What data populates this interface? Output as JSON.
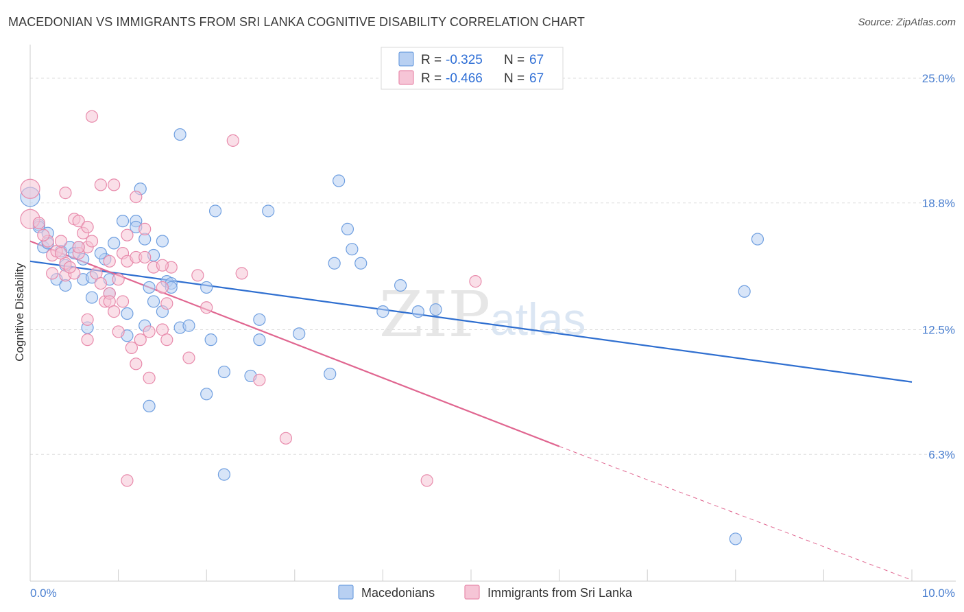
{
  "title": "MACEDONIAN VS IMMIGRANTS FROM SRI LANKA COGNITIVE DISABILITY CORRELATION CHART",
  "source": "Source: ZipAtlas.com",
  "watermark": {
    "zip": "ZIP",
    "atlas": "atlas"
  },
  "colors": {
    "blue": "#6f9fe0",
    "blue_fill": "#b8d0f2",
    "blue_line": "#2f6fd0",
    "pink": "#e88aab",
    "pink_fill": "#f6c5d6",
    "pink_line": "#e06690",
    "axis_label": "#4a7fd0",
    "grid": "#dddddd"
  },
  "legend": {
    "rows": [
      {
        "r_label": "R =",
        "r_value": "-0.325",
        "n_label": "N =",
        "n_value": "67",
        "series": "blue"
      },
      {
        "r_label": "R =",
        "r_value": "-0.466",
        "n_label": "N =",
        "n_value": "67",
        "series": "pink"
      }
    ]
  },
  "bottom_legend": [
    "Macedonians",
    "Immigrants from Sri Lanka"
  ],
  "chart_data": {
    "type": "scatter",
    "title": "MACEDONIAN VS IMMIGRANTS FROM SRI LANKA COGNITIVE DISABILITY CORRELATION CHART",
    "xlabel": "",
    "ylabel": "Cognitive Disability",
    "xlim": [
      0,
      10
    ],
    "ylim": [
      0,
      26.5
    ],
    "x_tick_labels": [
      "0.0%",
      "10.0%"
    ],
    "y_ticks": [
      6.3,
      12.5,
      18.8,
      25.0
    ],
    "y_tick_labels": [
      "6.3%",
      "12.5%",
      "18.8%",
      "25.0%"
    ],
    "grid": "horizontal dashed",
    "legend_position": "top-center",
    "series": [
      {
        "name": "Macedonians",
        "color": "blue",
        "trend": {
          "x": [
            0.0,
            10.0
          ],
          "y": [
            15.9,
            9.9
          ]
        },
        "points": [
          [
            0.0,
            19.1
          ],
          [
            0.1,
            17.7
          ],
          [
            0.2,
            17.3
          ],
          [
            0.15,
            16.6
          ],
          [
            0.35,
            16.4
          ],
          [
            0.45,
            16.6
          ],
          [
            0.55,
            16.6
          ],
          [
            0.6,
            16.0
          ],
          [
            0.4,
            15.7
          ],
          [
            0.3,
            15.0
          ],
          [
            0.4,
            14.7
          ],
          [
            0.6,
            15.0
          ],
          [
            0.85,
            16.0
          ],
          [
            0.95,
            16.8
          ],
          [
            0.9,
            15.0
          ],
          [
            0.7,
            14.1
          ],
          [
            0.9,
            14.3
          ],
          [
            1.05,
            17.9
          ],
          [
            1.2,
            17.9
          ],
          [
            1.3,
            17.0
          ],
          [
            1.2,
            17.6
          ],
          [
            1.25,
            19.5
          ],
          [
            1.4,
            16.2
          ],
          [
            1.5,
            16.9
          ],
          [
            1.35,
            14.6
          ],
          [
            1.55,
            14.9
          ],
          [
            1.6,
            14.8
          ],
          [
            1.4,
            13.9
          ],
          [
            1.5,
            13.4
          ],
          [
            1.1,
            13.3
          ],
          [
            1.3,
            12.7
          ],
          [
            1.1,
            12.2
          ],
          [
            0.65,
            12.6
          ],
          [
            1.7,
            12.6
          ],
          [
            1.8,
            12.7
          ],
          [
            1.7,
            22.2
          ],
          [
            2.1,
            18.4
          ],
          [
            2.7,
            18.4
          ],
          [
            2.0,
            14.6
          ],
          [
            2.05,
            12.0
          ],
          [
            2.2,
            10.4
          ],
          [
            2.0,
            9.3
          ],
          [
            2.5,
            10.2
          ],
          [
            2.6,
            13.0
          ],
          [
            2.6,
            12.0
          ],
          [
            3.05,
            12.3
          ],
          [
            3.4,
            10.3
          ],
          [
            3.45,
            15.8
          ],
          [
            3.65,
            16.5
          ],
          [
            3.6,
            17.5
          ],
          [
            3.75,
            15.8
          ],
          [
            4.0,
            13.4
          ],
          [
            4.2,
            14.7
          ],
          [
            4.4,
            13.4
          ],
          [
            4.6,
            13.5
          ],
          [
            3.5,
            19.9
          ],
          [
            1.35,
            8.7
          ],
          [
            2.2,
            5.3
          ],
          [
            8.25,
            17.0
          ],
          [
            8.1,
            14.4
          ],
          [
            8.0,
            2.1
          ],
          [
            0.1,
            17.6
          ],
          [
            0.2,
            16.8
          ],
          [
            0.5,
            16.3
          ],
          [
            0.7,
            15.1
          ],
          [
            1.6,
            14.6
          ],
          [
            0.8,
            16.3
          ]
        ]
      },
      {
        "name": "Immigrants from Sri Lanka",
        "color": "pink",
        "trend": {
          "x": [
            0.0,
            6.0
          ],
          "y": [
            16.9,
            6.7
          ]
        },
        "trend_dashed": {
          "x": [
            6.0,
            10.0
          ],
          "y": [
            6.7,
            0.05
          ]
        },
        "points": [
          [
            0.0,
            19.5
          ],
          [
            0.0,
            18.0
          ],
          [
            0.1,
            17.8
          ],
          [
            0.2,
            16.9
          ],
          [
            0.25,
            16.2
          ],
          [
            0.3,
            16.4
          ],
          [
            0.35,
            16.9
          ],
          [
            0.4,
            15.8
          ],
          [
            0.25,
            15.3
          ],
          [
            0.4,
            15.2
          ],
          [
            0.5,
            15.3
          ],
          [
            0.5,
            18.0
          ],
          [
            0.55,
            17.9
          ],
          [
            0.6,
            17.3
          ],
          [
            0.65,
            16.6
          ],
          [
            0.55,
            16.3
          ],
          [
            0.65,
            17.6
          ],
          [
            0.4,
            19.3
          ],
          [
            0.7,
            23.1
          ],
          [
            0.75,
            15.3
          ],
          [
            0.8,
            14.8
          ],
          [
            0.85,
            13.9
          ],
          [
            0.9,
            14.3
          ],
          [
            0.9,
            13.9
          ],
          [
            0.9,
            15.9
          ],
          [
            0.95,
            19.7
          ],
          [
            0.8,
            19.7
          ],
          [
            0.95,
            13.4
          ],
          [
            0.65,
            13.0
          ],
          [
            0.65,
            12.0
          ],
          [
            1.0,
            12.4
          ],
          [
            1.05,
            16.3
          ],
          [
            1.1,
            15.9
          ],
          [
            1.05,
            13.9
          ],
          [
            1.2,
            16.1
          ],
          [
            1.1,
            17.2
          ],
          [
            1.2,
            19.1
          ],
          [
            1.3,
            17.5
          ],
          [
            1.3,
            16.1
          ],
          [
            1.4,
            15.6
          ],
          [
            1.5,
            14.6
          ],
          [
            1.55,
            13.8
          ],
          [
            1.5,
            12.5
          ],
          [
            1.55,
            12.0
          ],
          [
            1.35,
            12.4
          ],
          [
            1.25,
            12.0
          ],
          [
            1.15,
            11.6
          ],
          [
            1.2,
            10.8
          ],
          [
            1.35,
            10.1
          ],
          [
            1.6,
            15.6
          ],
          [
            1.9,
            15.2
          ],
          [
            2.0,
            13.6
          ],
          [
            1.8,
            11.1
          ],
          [
            2.3,
            21.9
          ],
          [
            2.4,
            15.3
          ],
          [
            2.6,
            10.0
          ],
          [
            2.9,
            7.1
          ],
          [
            5.05,
            14.9
          ],
          [
            1.1,
            5.0
          ],
          [
            4.5,
            5.0
          ],
          [
            0.15,
            17.2
          ],
          [
            0.35,
            16.3
          ],
          [
            0.45,
            15.6
          ],
          [
            0.7,
            16.9
          ],
          [
            1.0,
            15.0
          ],
          [
            1.5,
            15.7
          ],
          [
            0.55,
            16.6
          ]
        ]
      }
    ]
  }
}
